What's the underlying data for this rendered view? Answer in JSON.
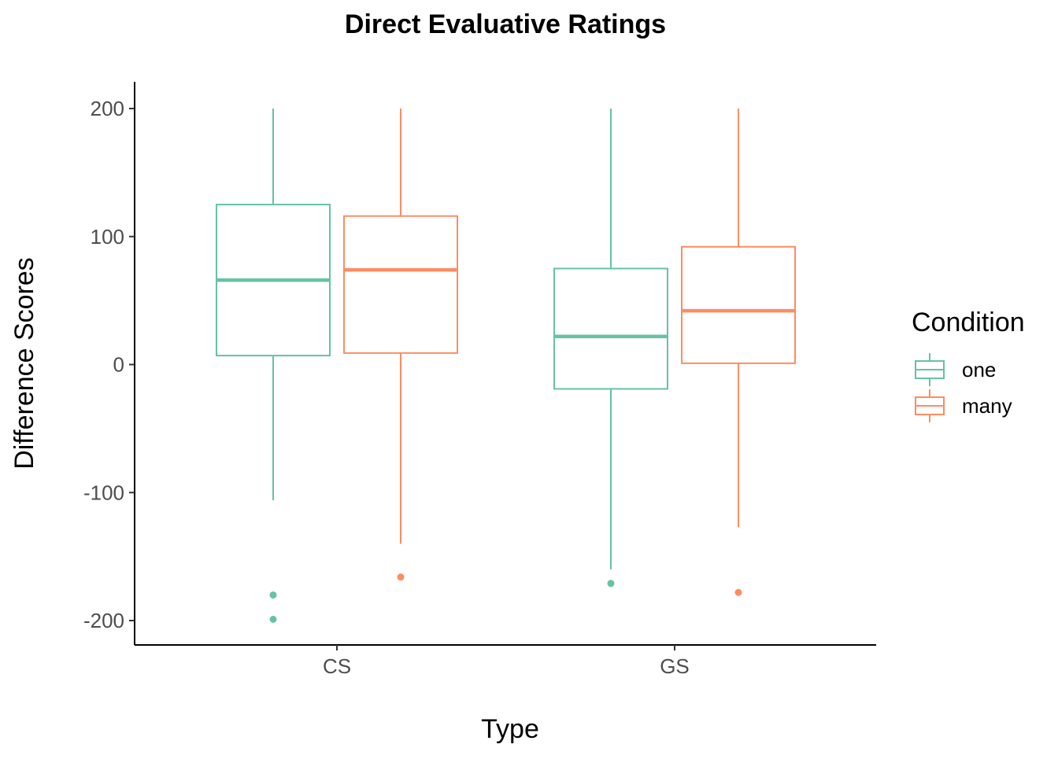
{
  "chart_data": {
    "type": "boxplot",
    "title": "Direct Evaluative Ratings",
    "xlabel": "Type",
    "ylabel": "Difference Scores",
    "categories": [
      "CS",
      "GS"
    ],
    "ylim": [
      -220,
      220
    ],
    "yticks": [
      200,
      100,
      0,
      -100,
      -200
    ],
    "ytick_labels": [
      "200",
      "100",
      "0",
      "-100",
      "-200"
    ],
    "grid": false,
    "legend": {
      "title": "Condition",
      "position": "right",
      "entries": [
        "one",
        "many"
      ]
    },
    "colors": {
      "one": "#66c2a5",
      "many": "#fc8d62"
    },
    "series": [
      {
        "name": "one",
        "boxes": [
          {
            "category": "CS",
            "whisker_low": -106,
            "q1": 7,
            "median": 66,
            "q3": 125,
            "whisker_high": 200,
            "outliers": [
              -180,
              -199
            ]
          },
          {
            "category": "GS",
            "whisker_low": -160,
            "q1": -19,
            "median": 22,
            "q3": 75,
            "whisker_high": 200,
            "outliers": [
              -171
            ]
          }
        ]
      },
      {
        "name": "many",
        "boxes": [
          {
            "category": "CS",
            "whisker_low": -140,
            "q1": 9,
            "median": 74,
            "q3": 116,
            "whisker_high": 200,
            "outliers": [
              -166
            ]
          },
          {
            "category": "GS",
            "whisker_low": -127,
            "q1": 1,
            "median": 42,
            "q3": 92,
            "whisker_high": 200,
            "outliers": [
              -178
            ]
          }
        ]
      }
    ]
  }
}
